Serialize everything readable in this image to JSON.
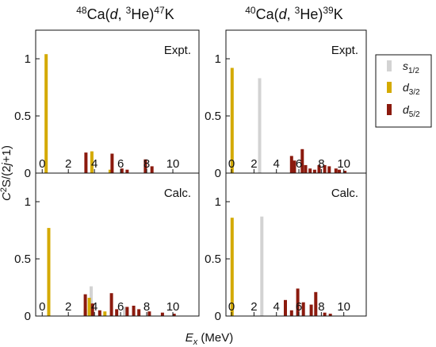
{
  "figure": {
    "titles": [
      {
        "pre": "48",
        "a": "Ca(",
        "b": "d",
        "c": ", ",
        "sup2": "3",
        "d": "He)",
        "sup3": "47",
        "e": "K"
      },
      {
        "pre": "40",
        "a": "Ca(",
        "b": "d",
        "c": ", ",
        "sup2": "3",
        "d": "He)",
        "sup3": "39",
        "e": "K"
      }
    ],
    "ylabel": {
      "a": "C",
      "sup": "2",
      "b": "S/(2",
      "c": "j",
      "d": "+1)"
    },
    "xlabel": {
      "a": "E",
      "sub": "x",
      "b": " (MeV)"
    },
    "panel_tags": {
      "expt": "Expt.",
      "calc": "Calc."
    },
    "legend": [
      {
        "key": "s",
        "base": "s",
        "sub": "1/2",
        "color": "#d3d3d3"
      },
      {
        "key": "d3",
        "base": "d",
        "sub": "3/2",
        "color": "#d4aa00"
      },
      {
        "key": "d5",
        "base": "d",
        "sub": "5/2",
        "color": "#8b1a0e"
      }
    ],
    "colors": {
      "s": "#d3d3d3",
      "d3": "#d4aa00",
      "d5": "#8b1a0e",
      "frame": "#111111"
    }
  },
  "chart_data": [
    {
      "type": "bar",
      "id": "k47-expt",
      "title": "48Ca(d, 3He)47K",
      "tag": "Expt.",
      "xlim": [
        -0.5,
        12
      ],
      "ylim": [
        0,
        1.25
      ],
      "xticks": [
        0,
        2,
        4,
        6,
        8,
        10
      ],
      "yticks": [
        0,
        0.5,
        1
      ],
      "series": [
        {
          "name": "s1/2",
          "points": []
        },
        {
          "name": "d3/2",
          "points": [
            [
              0.3,
              1.04
            ],
            [
              3.8,
              0.19
            ],
            [
              5.2,
              0.03
            ]
          ]
        },
        {
          "name": "d5/2",
          "points": [
            [
              3.35,
              0.18
            ],
            [
              5.35,
              0.17
            ],
            [
              6.1,
              0.04
            ],
            [
              6.5,
              0.03
            ],
            [
              7.9,
              0.12
            ],
            [
              8.4,
              0.06
            ]
          ]
        }
      ]
    },
    {
      "type": "bar",
      "id": "k39-expt",
      "title": "40Ca(d, 3He)39K",
      "tag": "Expt.",
      "xlim": [
        -0.5,
        12
      ],
      "ylim": [
        0,
        1.25
      ],
      "xticks": [
        0,
        2,
        4,
        6,
        8,
        10
      ],
      "yticks": [
        0,
        0.5,
        1
      ],
      "series": [
        {
          "name": "s1/2",
          "points": [
            [
              2.5,
              0.83
            ]
          ]
        },
        {
          "name": "d3/2",
          "points": [
            [
              0.05,
              0.92
            ]
          ]
        },
        {
          "name": "d5/2",
          "points": [
            [
              5.35,
              0.15
            ],
            [
              5.6,
              0.11
            ],
            [
              6.3,
              0.21
            ],
            [
              6.6,
              0.07
            ],
            [
              7.0,
              0.04
            ],
            [
              7.4,
              0.03
            ],
            [
              7.8,
              0.07
            ],
            [
              8.3,
              0.07
            ],
            [
              8.7,
              0.06
            ],
            [
              9.3,
              0.04
            ],
            [
              9.6,
              0.03
            ],
            [
              10.1,
              0.02
            ]
          ]
        }
      ]
    },
    {
      "type": "bar",
      "id": "k47-calc",
      "title": "48Ca(d, 3He)47K",
      "tag": "Calc.",
      "xlim": [
        -0.5,
        12
      ],
      "ylim": [
        0,
        1.25
      ],
      "xticks": [
        0,
        2,
        4,
        6,
        8,
        10
      ],
      "yticks": [
        0,
        0.5,
        1
      ],
      "series": [
        {
          "name": "s1/2",
          "points": [
            [
              3.75,
              0.26
            ],
            [
              6.3,
              0.08
            ]
          ]
        },
        {
          "name": "d3/2",
          "points": [
            [
              0.5,
              0.77
            ],
            [
              3.6,
              0.16
            ],
            [
              3.3,
              0.06
            ],
            [
              4.8,
              0.04
            ]
          ]
        },
        {
          "name": "d5/2",
          "points": [
            [
              3.3,
              0.19
            ],
            [
              3.85,
              0.11
            ],
            [
              4.4,
              0.05
            ],
            [
              5.3,
              0.2
            ],
            [
              5.7,
              0.06
            ],
            [
              6.5,
              0.08
            ],
            [
              7.0,
              0.09
            ],
            [
              7.4,
              0.06
            ],
            [
              8.2,
              0.04
            ],
            [
              9.2,
              0.03
            ],
            [
              10.1,
              0.02
            ]
          ]
        }
      ]
    },
    {
      "type": "bar",
      "id": "k39-calc",
      "title": "40Ca(d, 3He)39K",
      "tag": "Calc.",
      "xlim": [
        -0.5,
        12
      ],
      "ylim": [
        0,
        1.25
      ],
      "xticks": [
        0,
        2,
        4,
        6,
        8,
        10
      ],
      "yticks": [
        0,
        0.5,
        1
      ],
      "series": [
        {
          "name": "s1/2",
          "points": [
            [
              2.7,
              0.87
            ]
          ]
        },
        {
          "name": "d3/2",
          "points": [
            [
              0.05,
              0.86
            ]
          ]
        },
        {
          "name": "d5/2",
          "points": [
            [
              4.8,
              0.14
            ],
            [
              5.35,
              0.05
            ],
            [
              5.9,
              0.24
            ],
            [
              6.4,
              0.12
            ],
            [
              7.1,
              0.1
            ],
            [
              7.5,
              0.21
            ],
            [
              8.3,
              0.03
            ],
            [
              8.8,
              0.02
            ]
          ]
        }
      ]
    }
  ]
}
